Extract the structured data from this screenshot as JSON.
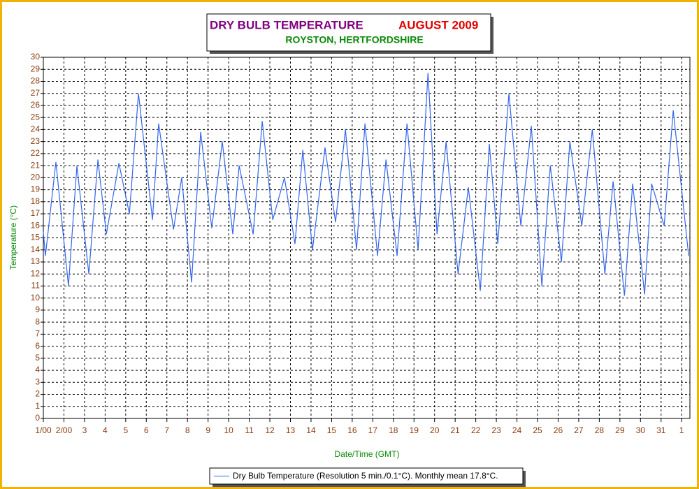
{
  "chart_data": {
    "type": "line",
    "title": "DRY BULB TEMPERATURE",
    "title_period": "AUGUST 2009",
    "subtitle": "ROYSTON, HERTFORDSHIRE",
    "x_label": "Date/Time (GMT)",
    "y_label": "Temperature (°C)",
    "grid": true,
    "legend": "bottom",
    "xlim": [
      0,
      31.4
    ],
    "ylim": [
      0,
      30
    ],
    "yticks": [
      0,
      1,
      2,
      3,
      4,
      5,
      6,
      7,
      8,
      9,
      10,
      11,
      12,
      13,
      14,
      15,
      16,
      17,
      18,
      19,
      20,
      21,
      22,
      23,
      24,
      25,
      26,
      27,
      28,
      29,
      30
    ],
    "xticks": [
      {
        "value": 0,
        "label": "1/00"
      },
      {
        "value": 1,
        "label": "2/00"
      },
      {
        "value": 2,
        "label": "3"
      },
      {
        "value": 3,
        "label": "4"
      },
      {
        "value": 4,
        "label": "5"
      },
      {
        "value": 5,
        "label": "6"
      },
      {
        "value": 6,
        "label": "7"
      },
      {
        "value": 7,
        "label": "8"
      },
      {
        "value": 8,
        "label": "9"
      },
      {
        "value": 9,
        "label": "10"
      },
      {
        "value": 10,
        "label": "11"
      },
      {
        "value": 11,
        "label": "12"
      },
      {
        "value": 12,
        "label": "13"
      },
      {
        "value": 13,
        "label": "14"
      },
      {
        "value": 14,
        "label": "15"
      },
      {
        "value": 15,
        "label": "16"
      },
      {
        "value": 16,
        "label": "17"
      },
      {
        "value": 17,
        "label": "18"
      },
      {
        "value": 18,
        "label": "19"
      },
      {
        "value": 19,
        "label": "20"
      },
      {
        "value": 20,
        "label": "21"
      },
      {
        "value": 21,
        "label": "22"
      },
      {
        "value": 22,
        "label": "23"
      },
      {
        "value": 23,
        "label": "24"
      },
      {
        "value": 24,
        "label": "25"
      },
      {
        "value": 25,
        "label": "26"
      },
      {
        "value": 26,
        "label": "27"
      },
      {
        "value": 27,
        "label": "28"
      },
      {
        "value": 28,
        "label": "29"
      },
      {
        "value": 29,
        "label": "30"
      },
      {
        "value": 30,
        "label": "31"
      },
      {
        "value": 31,
        "label": "1"
      }
    ],
    "x": [
      0,
      0.1,
      0.61,
      1.22,
      1.63,
      2.21,
      2.65,
      3.06,
      3.67,
      4.18,
      4.62,
      5.3,
      5.6,
      6.32,
      6.72,
      7.2,
      7.64,
      8.18,
      8.69,
      9.2,
      9.51,
      10.19,
      10.63,
      11.14,
      11.71,
      12.22,
      12.6,
      13.07,
      13.68,
      14.19,
      14.67,
      15.21,
      15.62,
      16.23,
      16.64,
      17.18,
      17.66,
      18.2,
      18.68,
      19.12,
      19.56,
      20.14,
      20.64,
      21.22,
      21.66,
      22.07,
      22.61,
      23.19,
      23.7,
      24.21,
      24.62,
      25.16,
      25.57,
      26.15,
      26.66,
      27.27,
      27.67,
      28.22,
      28.62,
      29.2,
      29.54,
      30.15,
      30.59,
      31.34
    ],
    "series": [
      {
        "name": "Dry Bulb Temperature (Resolution 5 min./0.1°C). Monthly mean 17.8°C.",
        "color": "#3366ee",
        "values": [
          15.5,
          13.5,
          21.3,
          11,
          21,
          12,
          21.5,
          15.3,
          21.2,
          17,
          27,
          16.5,
          24.5,
          15.7,
          20,
          11.3,
          23.8,
          15.8,
          23,
          15.3,
          21,
          15.3,
          24.7,
          16.5,
          20,
          14.5,
          22.3,
          14,
          22.5,
          16.3,
          24,
          14,
          24.5,
          13.5,
          21.5,
          13.5,
          24.5,
          14,
          28.7,
          15.3,
          23,
          12,
          19.2,
          10.6,
          22.8,
          14.5,
          27,
          16,
          24.3,
          11,
          21,
          13,
          23,
          16,
          24,
          12,
          19.7,
          10.2,
          19.5,
          10.3,
          19.5,
          16,
          25.6,
          13.5
        ]
      }
    ]
  }
}
